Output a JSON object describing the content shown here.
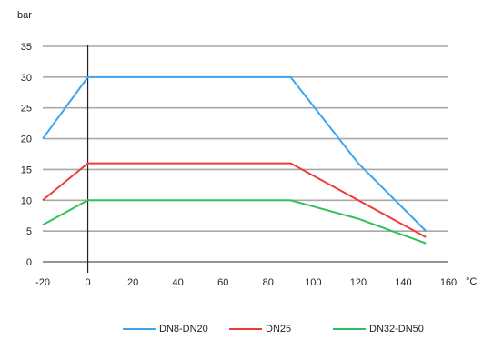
{
  "chart_data": {
    "type": "line",
    "ylabel": "bar",
    "xlabel": "°C",
    "xlim": [
      -20,
      160
    ],
    "ylim": [
      0,
      35
    ],
    "x_ticks": [
      -20,
      0,
      20,
      40,
      60,
      80,
      100,
      120,
      140,
      160
    ],
    "y_ticks": [
      0,
      5,
      10,
      15,
      20,
      25,
      30,
      35
    ],
    "grid": "horizontal",
    "legend_position": "bottom",
    "series": [
      {
        "name": "DN8-DN20",
        "color": "#3da4f0",
        "points": [
          [
            -20,
            20
          ],
          [
            0,
            30
          ],
          [
            90,
            30
          ],
          [
            120,
            16
          ],
          [
            150,
            5
          ]
        ]
      },
      {
        "name": "DN25",
        "color": "#f03a3a",
        "points": [
          [
            -20,
            10
          ],
          [
            0,
            16
          ],
          [
            90,
            16
          ],
          [
            120,
            10
          ],
          [
            150,
            4
          ]
        ]
      },
      {
        "name": "DN32-DN50",
        "color": "#2ec15a",
        "points": [
          [
            -20,
            6
          ],
          [
            0,
            10
          ],
          [
            90,
            10
          ],
          [
            120,
            7
          ],
          [
            150,
            3
          ]
        ]
      }
    ]
  }
}
